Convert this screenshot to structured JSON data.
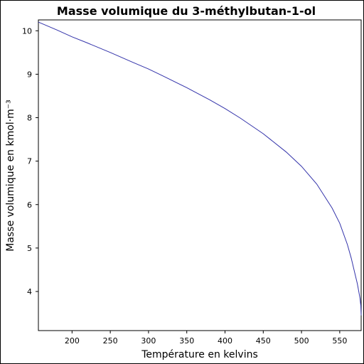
{
  "chart_data": {
    "type": "line",
    "title": "Masse volumique du 3-méthylbutan-1-ol",
    "xlabel": "Température en kelvins",
    "ylabel": "Masse volumique en kmol·m⁻³",
    "xlim": [
      156,
      578
    ],
    "ylim": [
      3.1,
      10.25
    ],
    "x_ticks": [
      200,
      250,
      300,
      350,
      400,
      450,
      500,
      550
    ],
    "y_ticks": [
      4,
      5,
      6,
      7,
      8,
      9,
      10
    ],
    "grid": false,
    "line_color": "#3333aa",
    "series": [
      {
        "x": [
          156,
          180,
          200,
          220,
          250,
          280,
          300,
          320,
          350,
          380,
          400,
          420,
          450,
          480,
          500,
          520,
          540,
          550,
          560,
          565,
          570,
          573,
          575,
          576.5,
          577.5,
          578
        ],
        "values": [
          10.2,
          10.02,
          9.86,
          9.72,
          9.5,
          9.27,
          9.12,
          8.95,
          8.69,
          8.41,
          8.21,
          7.99,
          7.63,
          7.21,
          6.88,
          6.47,
          5.92,
          5.57,
          5.08,
          4.77,
          4.4,
          4.18,
          3.99,
          3.84,
          3.68,
          3.45
        ]
      }
    ]
  }
}
